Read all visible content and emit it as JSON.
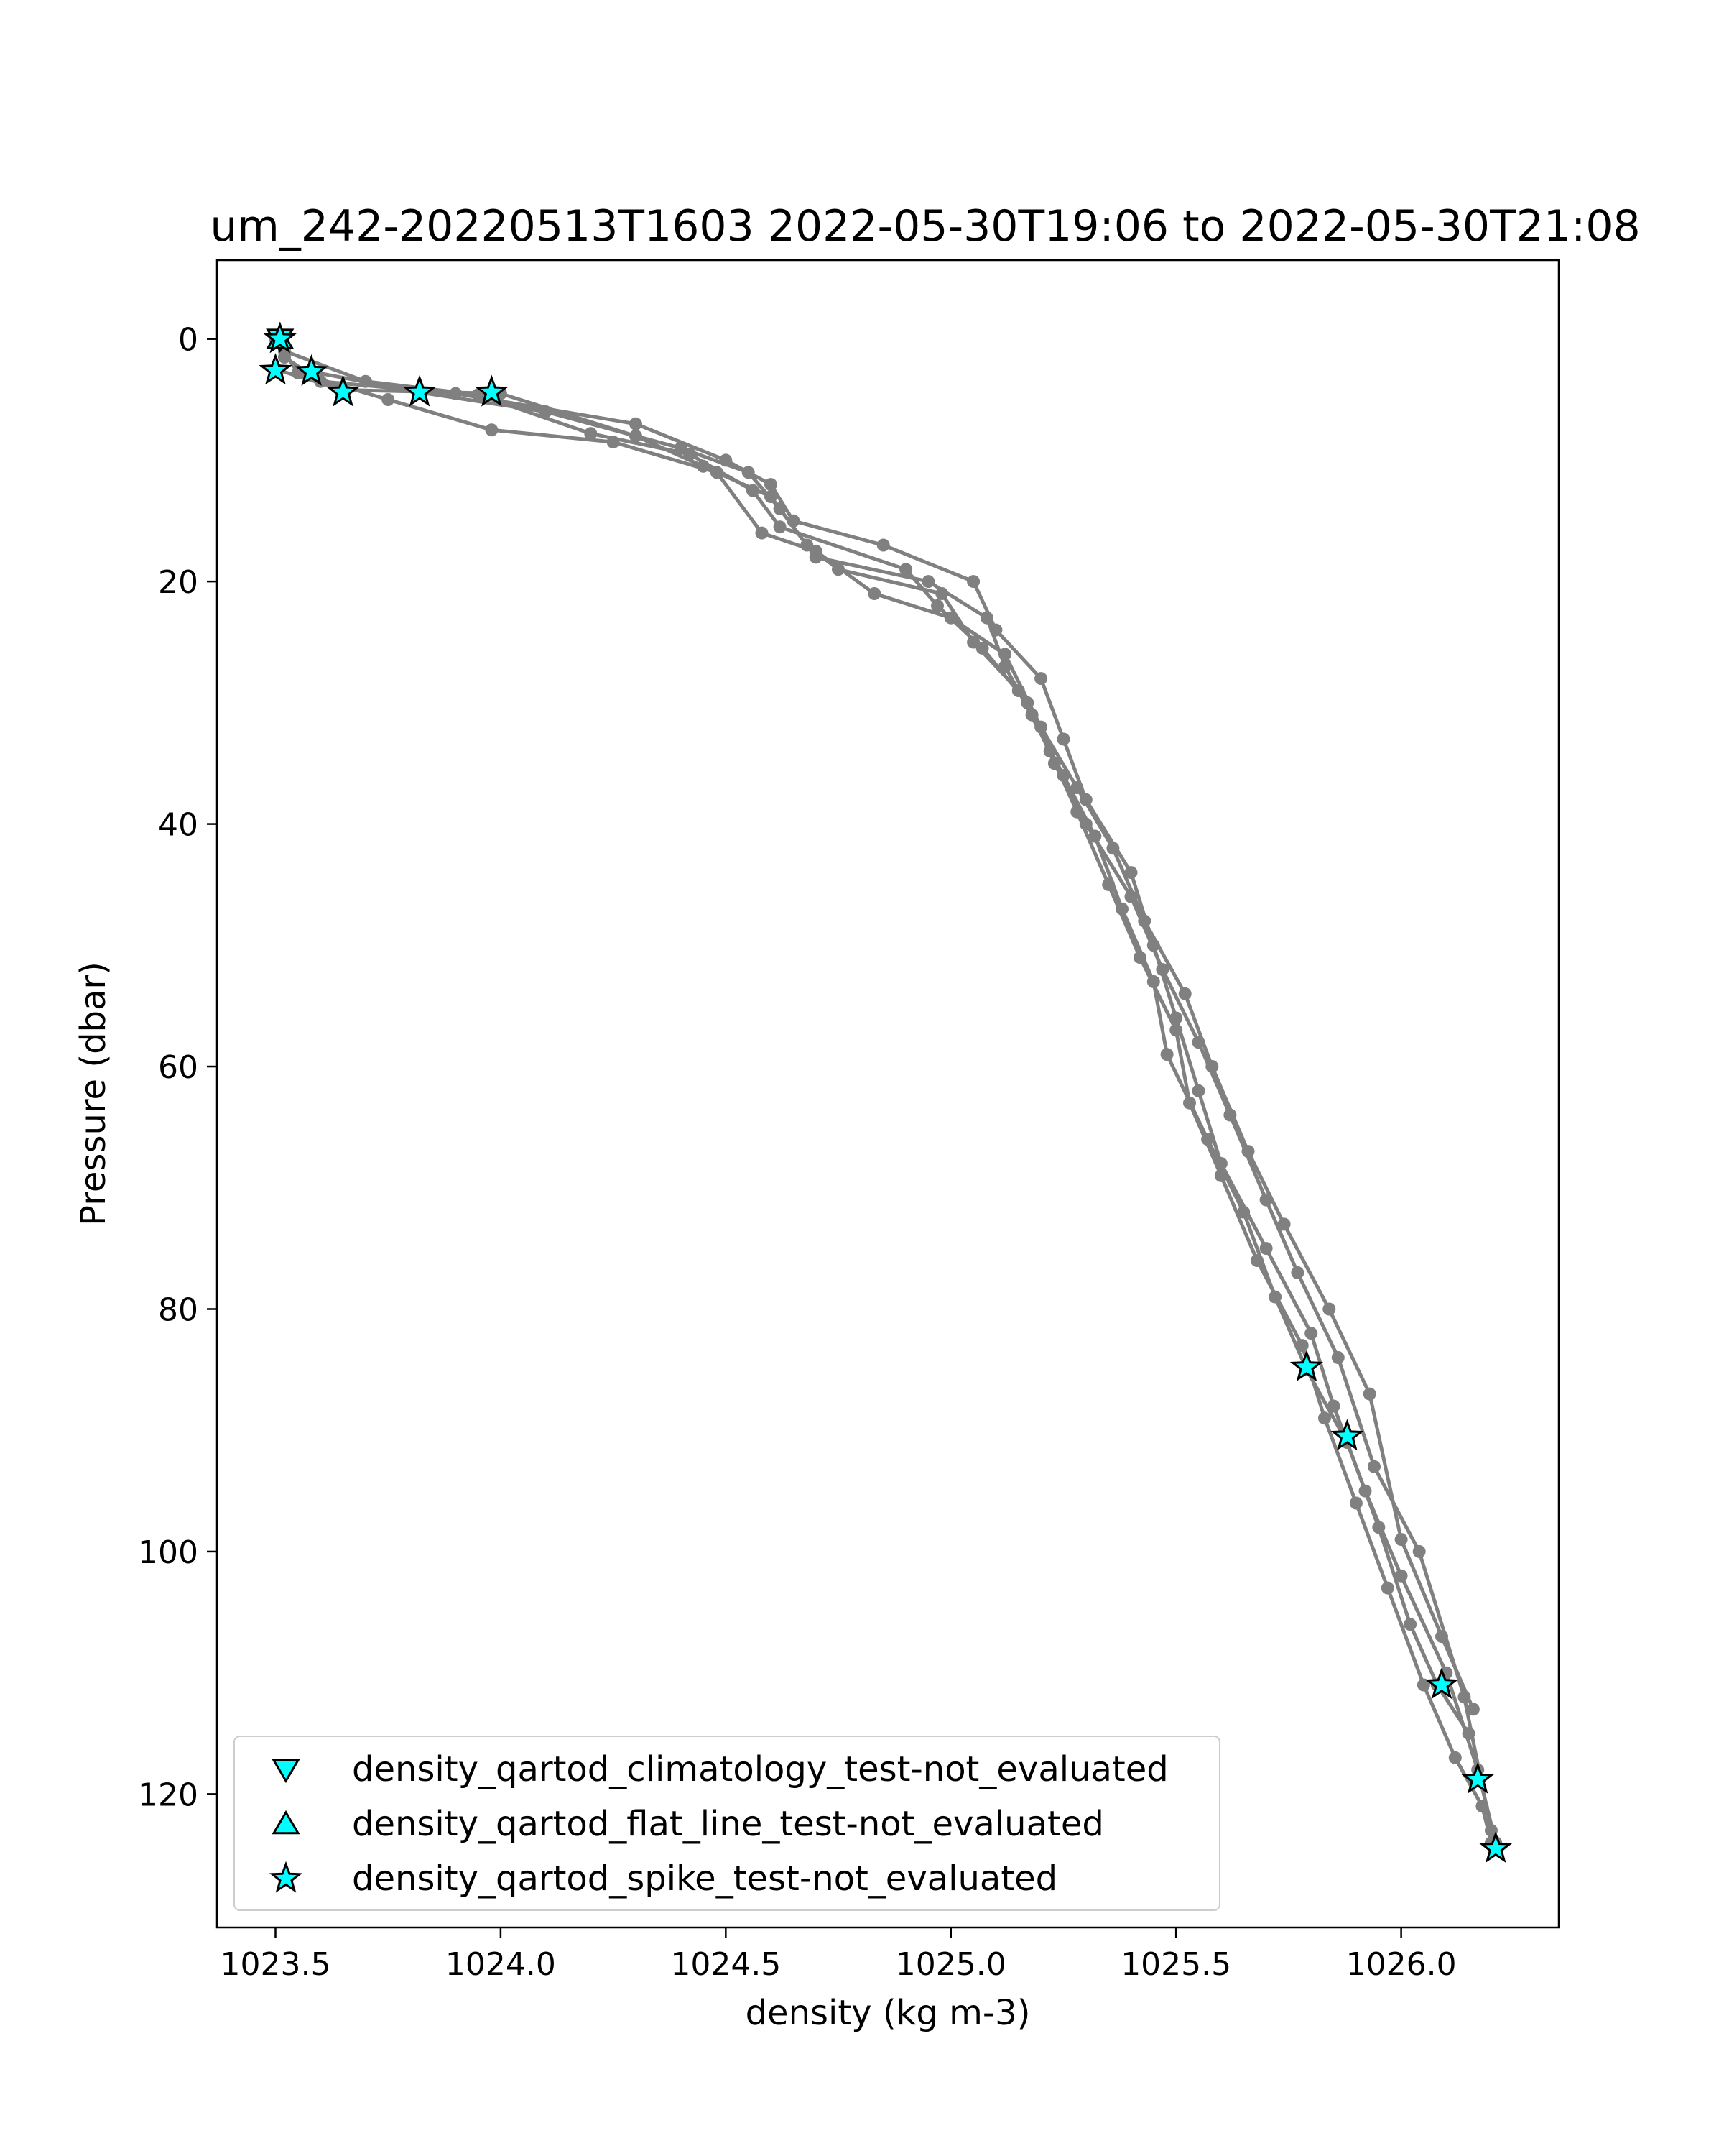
{
  "chart_data": {
    "type": "line",
    "title": "um_242-20220513T1603 2022-05-30T19:06 to 2022-05-30T21:08",
    "xlabel": "density (kg m-3)",
    "ylabel": "Pressure (dbar)",
    "xlim": [
      1023.37,
      1026.35
    ],
    "ylim": [
      131,
      -6.5
    ],
    "y_inverted": true,
    "grid": false,
    "xticks": [
      1023.5,
      1024.0,
      1024.5,
      1025.0,
      1025.5,
      1026.0
    ],
    "xtick_labels": [
      "1023.5",
      "1024.0",
      "1024.5",
      "1025.0",
      "1025.5",
      "1026.0"
    ],
    "yticks": [
      0,
      20,
      40,
      60,
      80,
      100,
      120
    ],
    "ytick_labels": [
      "0",
      "20",
      "40",
      "60",
      "80",
      "100",
      "120"
    ],
    "line_color": "#808080",
    "marker_color": "#00ffff",
    "series": [
      {
        "color": "#808080",
        "x": [
          1023.51,
          1023.52,
          1023.6,
          1023.9,
          1024.3,
          1024.5,
          1024.6,
          1024.65,
          1024.85,
          1025.05,
          1025.1,
          1025.2,
          1025.25,
          1025.3,
          1025.4,
          1025.45,
          1025.5,
          1025.55,
          1025.6,
          1025.7,
          1025.8,
          1025.85,
          1025.92,
          1026.0,
          1026.1,
          1026.17,
          1026.21
        ],
        "y": [
          0,
          1.5,
          3.5,
          4.5,
          7,
          10,
          12,
          15,
          17,
          20,
          24,
          28,
          33,
          38,
          44,
          50,
          56,
          62,
          68,
          75,
          82,
          88,
          95,
          102,
          110,
          118,
          124
        ]
      },
      {
        "color": "#808080",
        "x": [
          1023.5,
          1023.65,
          1024.0,
          1024.3,
          1024.45,
          1024.6,
          1024.68,
          1024.75,
          1024.98,
          1025.05,
          1025.15,
          1025.22,
          1025.28,
          1025.35,
          1025.42,
          1025.5,
          1025.53,
          1025.6,
          1025.68,
          1025.78,
          1025.83,
          1025.9,
          1025.97,
          1026.05,
          1026.12,
          1026.18,
          1026.2
        ],
        "y": [
          2.5,
          4.2,
          4.5,
          8,
          10.5,
          13,
          17,
          19,
          21,
          25,
          29,
          34,
          39,
          45,
          51,
          57,
          63,
          69,
          76,
          83,
          89,
          96,
          103,
          111,
          117,
          121,
          124
        ]
      },
      {
        "color": "#808080",
        "x": [
          1023.58,
          1023.82,
          1024.1,
          1024.4,
          1024.55,
          1024.62,
          1024.7,
          1024.95,
          1025.08,
          1025.12,
          1025.18,
          1025.25,
          1025.32,
          1025.38,
          1025.45,
          1025.48,
          1025.57,
          1025.65,
          1025.72,
          1025.79,
          1025.88,
          1025.95,
          1026.02,
          1026.08,
          1026.15
        ],
        "y": [
          2.7,
          4.4,
          6,
          9,
          11,
          14,
          18,
          20,
          23,
          27,
          31,
          36,
          41,
          47,
          53,
          59,
          66,
          72,
          79,
          85,
          91,
          98,
          106,
          111,
          115
        ]
      },
      {
        "color": "#808080",
        "x": [
          1023.5,
          1023.55,
          1023.75,
          1023.98,
          1024.25,
          1024.48,
          1024.58,
          1024.7,
          1024.83,
          1025.0,
          1025.12,
          1025.2,
          1025.28,
          1025.36,
          1025.43,
          1025.52,
          1025.58,
          1025.66,
          1025.74,
          1025.84,
          1025.93,
          1026.0,
          1026.09,
          1026.16
        ],
        "y": [
          0,
          2.8,
          5,
          7.5,
          8.5,
          11,
          16,
          17.5,
          21,
          23,
          26,
          32,
          37,
          42,
          48,
          54,
          60,
          67,
          73,
          80,
          87,
          99,
          107,
          113
        ]
      },
      {
        "color": "#808080",
        "x": [
          1023.52,
          1023.7,
          1023.95,
          1024.2,
          1024.42,
          1024.56,
          1024.62,
          1024.9,
          1024.97,
          1025.07,
          1025.17,
          1025.23,
          1025.3,
          1025.4,
          1025.47,
          1025.55,
          1025.62,
          1025.7,
          1025.77,
          1025.86,
          1025.94,
          1026.04,
          1026.14,
          1026.2
        ],
        "y": [
          1,
          3.5,
          4.6,
          7.8,
          9.5,
          12.5,
          15.5,
          19,
          22,
          25.5,
          30,
          35,
          40,
          46,
          52,
          58,
          64,
          71,
          77,
          84,
          93,
          100,
          112,
          123
        ]
      }
    ],
    "flag_markers": [
      {
        "name": "density_qartod_climatology_test-not_evaluated",
        "marker": "triangle-down",
        "color": "#00ffff",
        "x": [
          1023.51
        ],
        "y": [
          0.0
        ]
      },
      {
        "name": "density_qartod_flat_line_test-not_evaluated",
        "marker": "triangle-up",
        "color": "#00ffff",
        "x": [
          1023.51
        ],
        "y": [
          0.0
        ]
      },
      {
        "name": "density_qartod_spike_test-not_evaluated",
        "marker": "star",
        "color": "#00ffff",
        "x": [
          1023.51,
          1023.5,
          1023.58,
          1023.65,
          1023.82,
          1023.98,
          1025.79,
          1025.88,
          1026.09,
          1026.17,
          1026.21
        ],
        "y": [
          0.0,
          2.6,
          2.7,
          4.4,
          4.4,
          4.4,
          84.8,
          90.5,
          111.0,
          118.8,
          124.5
        ]
      }
    ],
    "legend": {
      "position": "lower-left",
      "entries": [
        {
          "marker": "triangle-down",
          "label": "density_qartod_climatology_test-not_evaluated"
        },
        {
          "marker": "triangle-up",
          "label": "density_qartod_flat_line_test-not_evaluated"
        },
        {
          "marker": "star",
          "label": "density_qartod_spike_test-not_evaluated"
        }
      ]
    }
  }
}
